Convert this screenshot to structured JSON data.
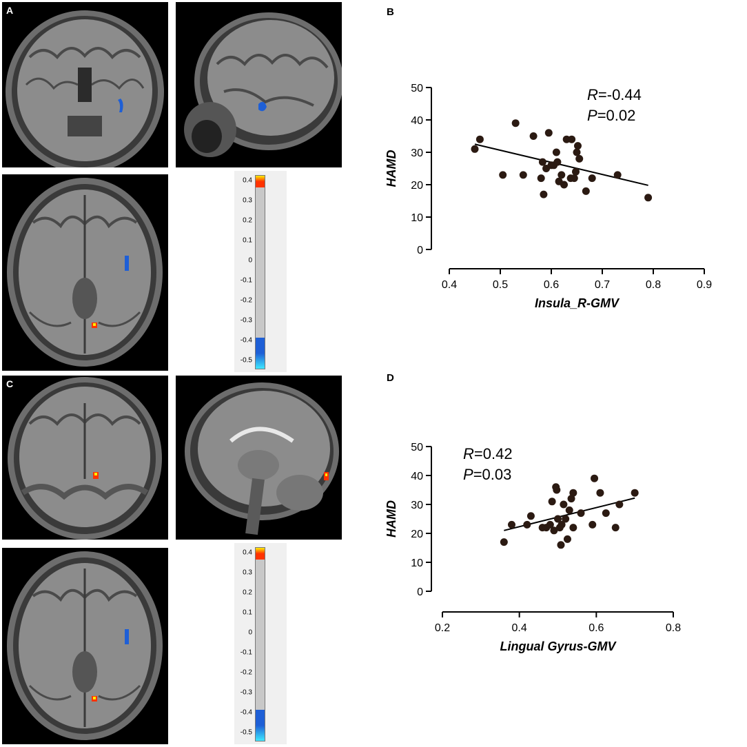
{
  "panels": {
    "a": "A",
    "b": "B",
    "c": "C",
    "d": "D"
  },
  "colorbar": {
    "ticks": [
      "0.4",
      "0.3",
      "0.2",
      "0.1",
      "0",
      "-0.1",
      "-0.2",
      "-0.3",
      "-0.4",
      "-0.5"
    ],
    "colors": {
      "positive": "#ff3300",
      "positive_peak": "#ffee00",
      "neutral": "#c8c8c8",
      "negative": "#1e5fd6",
      "negative_peak": "#3ee8ff"
    }
  },
  "chart_data": [
    {
      "type": "scatter",
      "panel": "B",
      "xlabel": "Insula_R-GMV",
      "ylabel": "HAMD",
      "xlim": [
        0.4,
        0.9
      ],
      "ylim": [
        0,
        50
      ],
      "xticks": [
        "0.4",
        "0.5",
        "0.6",
        "0.7",
        "0.8",
        "0.9"
      ],
      "yticks": [
        "0",
        "10",
        "20",
        "30",
        "40",
        "50"
      ],
      "stats": {
        "r_label": "R",
        "r_value": "=-0.44",
        "p_label": "P",
        "p_value": "=0.02"
      },
      "fit_line": {
        "x": [
          0.45,
          0.79
        ],
        "y": [
          32.5,
          19.8
        ]
      },
      "points": [
        [
          0.45,
          31
        ],
        [
          0.46,
          34
        ],
        [
          0.505,
          23
        ],
        [
          0.53,
          39
        ],
        [
          0.545,
          23
        ],
        [
          0.565,
          35
        ],
        [
          0.58,
          22
        ],
        [
          0.583,
          27
        ],
        [
          0.585,
          17
        ],
        [
          0.59,
          25
        ],
        [
          0.595,
          36
        ],
        [
          0.6,
          26
        ],
        [
          0.605,
          26
        ],
        [
          0.61,
          30
        ],
        [
          0.612,
          27
        ],
        [
          0.615,
          21
        ],
        [
          0.62,
          23
        ],
        [
          0.625,
          20
        ],
        [
          0.63,
          34
        ],
        [
          0.64,
          34
        ],
        [
          0.638,
          22
        ],
        [
          0.645,
          22
        ],
        [
          0.648,
          24
        ],
        [
          0.65,
          30
        ],
        [
          0.652,
          32
        ],
        [
          0.655,
          28
        ],
        [
          0.668,
          18
        ],
        [
          0.68,
          22
        ],
        [
          0.73,
          23
        ],
        [
          0.79,
          16
        ]
      ]
    },
    {
      "type": "scatter",
      "panel": "D",
      "xlabel": "Lingual Gyrus-GMV",
      "ylabel": "HAMD",
      "xlim": [
        0.2,
        0.8
      ],
      "ylim": [
        0,
        50
      ],
      "xticks": [
        "0.2",
        "0.4",
        "0.6",
        "0.8"
      ],
      "yticks": [
        "0",
        "10",
        "20",
        "30",
        "40",
        "50"
      ],
      "stats": {
        "r_label": "R",
        "r_value": "=0.42",
        "p_label": "P",
        "p_value": "=0.03"
      },
      "fit_line": {
        "x": [
          0.36,
          0.7
        ],
        "y": [
          21,
          32.2
        ]
      },
      "points": [
        [
          0.36,
          17
        ],
        [
          0.38,
          23
        ],
        [
          0.42,
          23
        ],
        [
          0.43,
          26
        ],
        [
          0.46,
          22
        ],
        [
          0.47,
          22
        ],
        [
          0.48,
          23
        ],
        [
          0.485,
          31
        ],
        [
          0.49,
          21
        ],
        [
          0.495,
          36
        ],
        [
          0.497,
          35
        ],
        [
          0.5,
          25
        ],
        [
          0.505,
          22
        ],
        [
          0.508,
          16
        ],
        [
          0.51,
          23
        ],
        [
          0.515,
          30
        ],
        [
          0.52,
          25
        ],
        [
          0.525,
          18
        ],
        [
          0.53,
          28
        ],
        [
          0.535,
          32
        ],
        [
          0.54,
          34
        ],
        [
          0.54,
          22
        ],
        [
          0.59,
          23
        ],
        [
          0.595,
          39
        ],
        [
          0.61,
          34
        ],
        [
          0.625,
          27
        ],
        [
          0.65,
          22
        ],
        [
          0.66,
          30
        ],
        [
          0.7,
          34
        ],
        [
          0.56,
          27
        ]
      ]
    }
  ]
}
